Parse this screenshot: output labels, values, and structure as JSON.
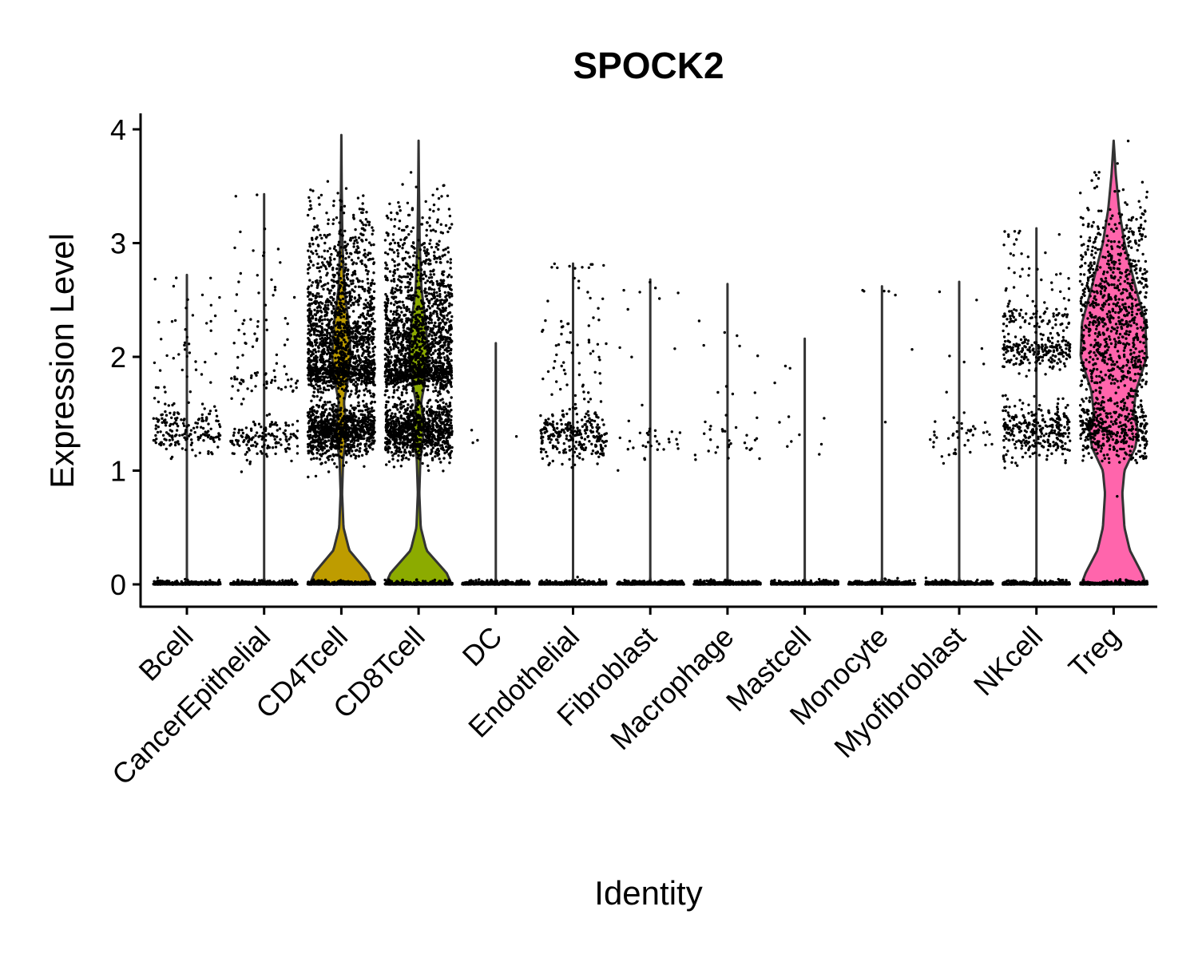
{
  "chart_data": {
    "type": "violin",
    "title": "SPOCK2",
    "xlabel": "Identity",
    "ylabel": "Expression Level",
    "ylim": [
      -0.2,
      4.15
    ],
    "yticks": [
      0,
      1,
      2,
      3,
      4
    ],
    "ytick_labels": [
      "0",
      "1",
      "2",
      "3",
      "4"
    ],
    "grid": false,
    "legend": "none",
    "categories": [
      "Bcell",
      "CancerEpithelial",
      "CD4Tcell",
      "CD8Tcell",
      "DC",
      "Endothelial",
      "Fibroblast",
      "Macrophage",
      "Mastcell",
      "Monocyte",
      "Myofibroblast",
      "NKcell",
      "Treg"
    ],
    "violins": [
      {
        "category": "Bcell",
        "color": "#F8766D",
        "max": 2.72,
        "shape": [
          [
            0,
            0.04
          ],
          [
            0.05,
            0.0
          ],
          [
            2.72,
            0.0
          ]
        ],
        "dots": [
          [
            0,
            420,
            0.015
          ],
          [
            1.33,
            160,
            0.11
          ],
          [
            1.95,
            45,
            0.35
          ],
          [
            2.3,
            10,
            0.3
          ]
        ]
      },
      {
        "category": "CancerEpithelial",
        "color": "#E18A00",
        "max": 3.43,
        "shape": [
          [
            0,
            0.04
          ],
          [
            0.05,
            0.0
          ],
          [
            3.43,
            0.0
          ]
        ],
        "dots": [
          [
            0,
            420,
            0.015
          ],
          [
            1.28,
            140,
            0.09
          ],
          [
            1.78,
            40,
            0.06
          ],
          [
            2.25,
            40,
            0.4
          ],
          [
            2.8,
            14,
            0.35
          ]
        ]
      },
      {
        "category": "CD4Tcell",
        "color": "#BE9C00",
        "max": 3.95,
        "shape": [
          [
            0,
            0.88
          ],
          [
            0.1,
            0.75
          ],
          [
            0.3,
            0.22
          ],
          [
            0.5,
            0.06
          ],
          [
            0.8,
            0.02
          ],
          [
            1.1,
            0.05
          ],
          [
            1.25,
            0.12
          ],
          [
            1.4,
            0.14
          ],
          [
            1.6,
            0.07
          ],
          [
            1.75,
            0.16
          ],
          [
            2.0,
            0.26
          ],
          [
            2.3,
            0.2
          ],
          [
            2.6,
            0.08
          ],
          [
            3.0,
            0.03
          ],
          [
            3.5,
            0.01
          ],
          [
            3.95,
            0.0
          ]
        ],
        "dots": [
          [
            0,
            420,
            0.015
          ],
          [
            1.35,
            900,
            0.12
          ],
          [
            1.85,
            400,
            0.06
          ],
          [
            2.1,
            800,
            0.22
          ],
          [
            2.55,
            300,
            0.25
          ],
          [
            2.95,
            160,
            0.2
          ],
          [
            3.3,
            20,
            0.12
          ]
        ]
      },
      {
        "category": "CD8Tcell",
        "color": "#8CAB00",
        "max": 3.9,
        "shape": [
          [
            0,
            0.92
          ],
          [
            0.1,
            0.78
          ],
          [
            0.3,
            0.22
          ],
          [
            0.5,
            0.06
          ],
          [
            0.8,
            0.02
          ],
          [
            1.1,
            0.05
          ],
          [
            1.25,
            0.12
          ],
          [
            1.4,
            0.14
          ],
          [
            1.6,
            0.07
          ],
          [
            1.75,
            0.16
          ],
          [
            2.0,
            0.26
          ],
          [
            2.3,
            0.2
          ],
          [
            2.6,
            0.08
          ],
          [
            3.0,
            0.03
          ],
          [
            3.5,
            0.01
          ],
          [
            3.9,
            0.0
          ]
        ],
        "dots": [
          [
            0,
            420,
            0.015
          ],
          [
            1.35,
            900,
            0.12
          ],
          [
            1.85,
            400,
            0.06
          ],
          [
            2.1,
            800,
            0.22
          ],
          [
            2.55,
            300,
            0.25
          ],
          [
            2.95,
            140,
            0.2
          ],
          [
            3.3,
            20,
            0.12
          ]
        ]
      },
      {
        "category": "DC",
        "color": "#24B700",
        "max": 2.12,
        "shape": [
          [
            0,
            0.04
          ],
          [
            0.05,
            0.0
          ],
          [
            2.12,
            0.0
          ]
        ],
        "dots": [
          [
            0,
            420,
            0.015
          ],
          [
            1.28,
            4,
            0.05
          ]
        ]
      },
      {
        "category": "Endothelial",
        "color": "#00BE70",
        "max": 2.82,
        "shape": [
          [
            0,
            0.04
          ],
          [
            0.05,
            0.0
          ],
          [
            2.82,
            0.0
          ]
        ],
        "dots": [
          [
            0,
            420,
            0.015
          ],
          [
            1.3,
            260,
            0.11
          ],
          [
            1.95,
            60,
            0.3
          ],
          [
            2.5,
            20,
            0.3
          ]
        ]
      },
      {
        "category": "Fibroblast",
        "color": "#00C1AB",
        "max": 2.68,
        "shape": [
          [
            0,
            0.04
          ],
          [
            0.05,
            0.0
          ],
          [
            2.68,
            0.0
          ]
        ],
        "dots": [
          [
            0,
            420,
            0.015
          ],
          [
            1.25,
            30,
            0.1
          ],
          [
            1.9,
            6,
            0.3
          ],
          [
            2.6,
            5,
            0.05
          ]
        ]
      },
      {
        "category": "Macrophage",
        "color": "#00BBDA",
        "max": 2.64,
        "shape": [
          [
            0,
            0.04
          ],
          [
            0.05,
            0.0
          ],
          [
            2.64,
            0.0
          ]
        ],
        "dots": [
          [
            0,
            420,
            0.015
          ],
          [
            1.25,
            30,
            0.1
          ],
          [
            2.0,
            10,
            0.2
          ]
        ]
      },
      {
        "category": "Mastcell",
        "color": "#00ACFC",
        "max": 2.16,
        "shape": [
          [
            0,
            0.04
          ],
          [
            0.05,
            0.0
          ],
          [
            2.16,
            0.0
          ]
        ],
        "dots": [
          [
            0,
            420,
            0.015
          ],
          [
            1.3,
            8,
            0.1
          ],
          [
            2.0,
            3,
            0.15
          ]
        ]
      },
      {
        "category": "Monocyte",
        "color": "#8B93FF",
        "max": 2.62,
        "shape": [
          [
            0,
            0.04
          ],
          [
            0.05,
            0.0
          ],
          [
            2.62,
            0.0
          ]
        ],
        "dots": [
          [
            0,
            420,
            0.015
          ],
          [
            2.58,
            5,
            0.03
          ],
          [
            2.08,
            1,
            0.02
          ],
          [
            1.43,
            1,
            0.02
          ]
        ]
      },
      {
        "category": "Myofibroblast",
        "color": "#D575FE",
        "max": 2.66,
        "shape": [
          [
            0,
            0.04
          ],
          [
            0.05,
            0.0
          ],
          [
            2.66,
            0.0
          ]
        ],
        "dots": [
          [
            0,
            420,
            0.015
          ],
          [
            1.3,
            40,
            0.1
          ],
          [
            1.85,
            6,
            0.15
          ],
          [
            2.6,
            2,
            0.05
          ]
        ]
      },
      {
        "category": "NKcell",
        "color": "#F962DD",
        "max": 3.13,
        "shape": [
          [
            0,
            0.04
          ],
          [
            0.05,
            0.0
          ],
          [
            3.13,
            0.0
          ]
        ],
        "dots": [
          [
            0,
            420,
            0.015
          ],
          [
            1.35,
            300,
            0.12
          ],
          [
            2.05,
            220,
            0.08
          ],
          [
            2.35,
            60,
            0.05
          ],
          [
            2.65,
            40,
            0.2
          ],
          [
            3.05,
            8,
            0.08
          ]
        ]
      },
      {
        "category": "Treg",
        "color": "#FF65AC",
        "max": 3.9,
        "shape": [
          [
            0,
            0.9
          ],
          [
            0.1,
            0.78
          ],
          [
            0.3,
            0.45
          ],
          [
            0.5,
            0.3
          ],
          [
            0.8,
            0.24
          ],
          [
            1.0,
            0.3
          ],
          [
            1.2,
            0.6
          ],
          [
            1.35,
            0.68
          ],
          [
            1.5,
            0.55
          ],
          [
            1.7,
            0.62
          ],
          [
            2.0,
            0.92
          ],
          [
            2.3,
            0.88
          ],
          [
            2.6,
            0.62
          ],
          [
            3.0,
            0.3
          ],
          [
            3.3,
            0.15
          ],
          [
            3.6,
            0.06
          ],
          [
            3.9,
            0.0
          ]
        ],
        "dots": [
          [
            0,
            420,
            0.015
          ],
          [
            1.35,
            350,
            0.12
          ],
          [
            2.1,
            550,
            0.35
          ],
          [
            2.75,
            280,
            0.3
          ],
          [
            3.2,
            50,
            0.2
          ]
        ]
      }
    ]
  }
}
